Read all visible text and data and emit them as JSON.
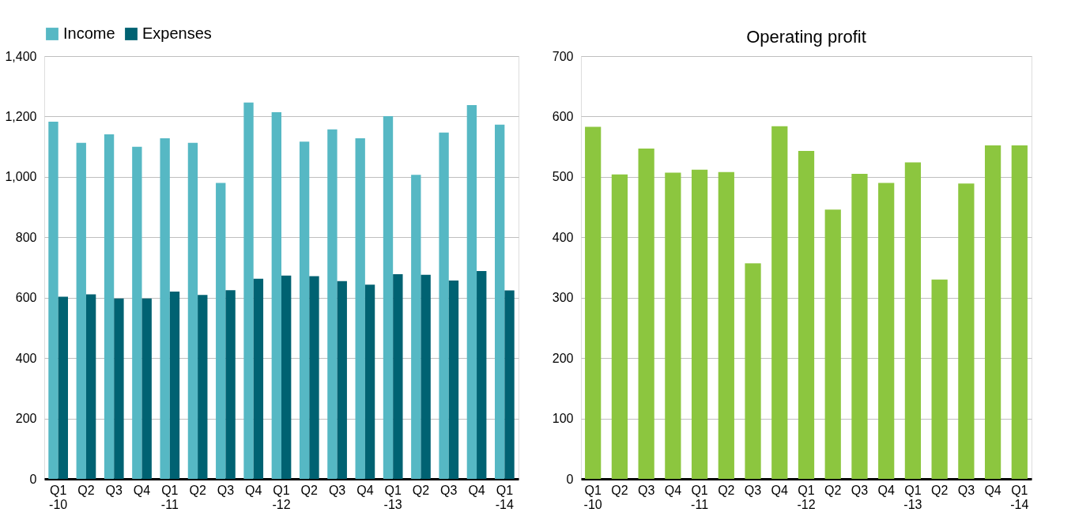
{
  "chart_data": [
    {
      "type": "bar",
      "categories": [
        "Q1 -10",
        "Q2",
        "Q3",
        "Q4",
        "Q1 -11",
        "Q2",
        "Q3",
        "Q4",
        "Q1 -12",
        "Q2",
        "Q3",
        "Q4",
        "Q1 -13",
        "Q2",
        "Q3",
        "Q4",
        "Q1 -14"
      ],
      "series": [
        {
          "name": "Income",
          "color": "#56b8c4",
          "values": [
            1183,
            1113,
            1141,
            1100,
            1128,
            1113,
            980,
            1246,
            1214,
            1117,
            1157,
            1128,
            1201,
            1007,
            1147,
            1238,
            1173
          ]
        },
        {
          "name": "Expenses",
          "color": "#006272",
          "values": [
            603,
            611,
            597,
            597,
            620,
            609,
            625,
            663,
            673,
            671,
            655,
            643,
            678,
            676,
            657,
            688,
            624
          ]
        }
      ],
      "ylim": [
        0,
        1400
      ],
      "yticks": [
        0,
        200,
        400,
        600,
        800,
        {
          "value": 1000,
          "label": "1,000"
        },
        {
          "value": 1200,
          "label": "1,200"
        },
        {
          "value": 1400,
          "label": "1,400"
        }
      ],
      "grid": "y",
      "legend": "top"
    },
    {
      "type": "bar",
      "title": "Operating profit",
      "categories": [
        "Q1 -10",
        "Q2",
        "Q3",
        "Q4",
        "Q1 -11",
        "Q2",
        "Q3",
        "Q4",
        "Q1 -12",
        "Q2",
        "Q3",
        "Q4",
        "Q1 -13",
        "Q2",
        "Q3",
        "Q4",
        "Q1 -14"
      ],
      "series": [
        {
          "color": "#8cc63f",
          "values": [
            583,
            504,
            547,
            507,
            512,
            508,
            357,
            584,
            543,
            446,
            505,
            490,
            524,
            330,
            489,
            552,
            552
          ]
        }
      ],
      "ylim": [
        0,
        700
      ],
      "yticks": [
        0,
        100,
        200,
        300,
        400,
        500,
        600,
        700
      ],
      "grid": "y"
    }
  ]
}
